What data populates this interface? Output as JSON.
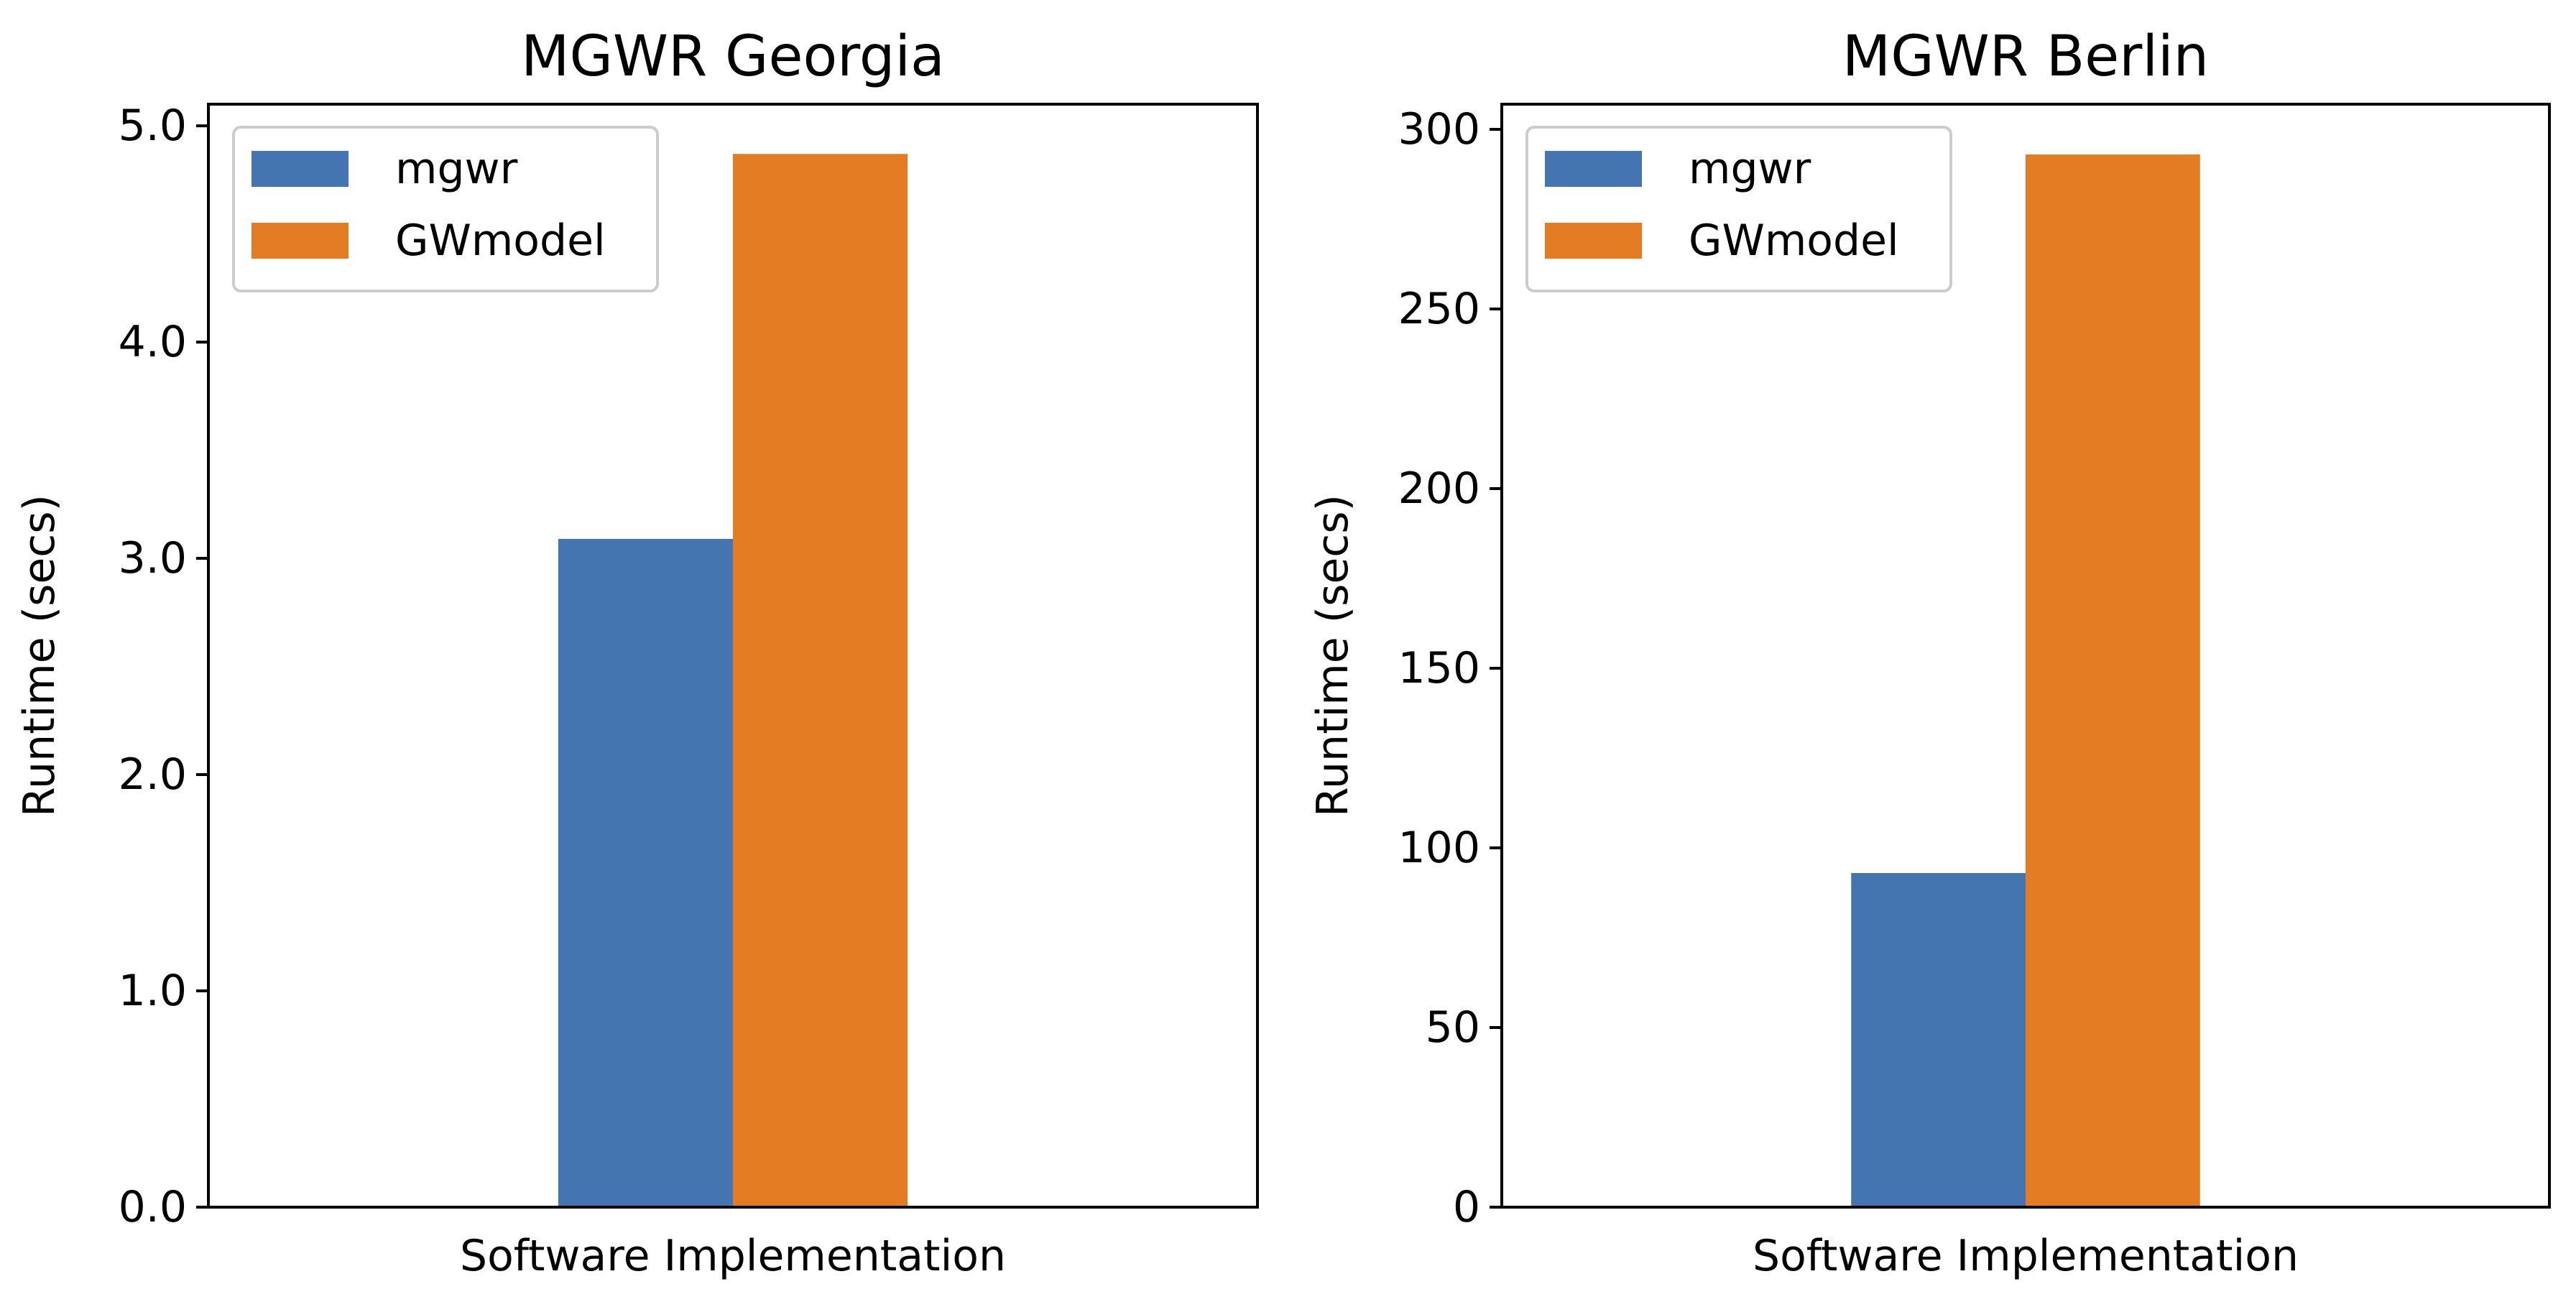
{
  "chart_data": [
    {
      "type": "bar",
      "title": "MGWR Georgia",
      "xlabel": "Software Implementation",
      "ylabel": "Runtime (secs)",
      "ylim": [
        0,
        5.1
      ],
      "yticks": [
        0,
        1,
        2,
        3,
        4,
        5
      ],
      "ytick_labels": [
        "0.0",
        "1.0",
        "2.0",
        "3.0",
        "4.0",
        "5.0"
      ],
      "categories": [
        ""
      ],
      "legend_position": "upper-left",
      "grid": false,
      "series": [
        {
          "name": "mgwr",
          "color": "#4575b0",
          "values": [
            3.09
          ]
        },
        {
          "name": "GWmodel",
          "color": "#e37c22",
          "values": [
            4.87
          ]
        }
      ]
    },
    {
      "type": "bar",
      "title": "MGWR Berlin",
      "xlabel": "Software Implementation",
      "ylabel": "Runtime (secs)",
      "ylim": [
        0,
        307
      ],
      "yticks": [
        0,
        50,
        100,
        150,
        200,
        250,
        300
      ],
      "ytick_labels": [
        "0",
        "50",
        "100",
        "150",
        "200",
        "250",
        "300"
      ],
      "categories": [
        ""
      ],
      "legend_position": "upper-left",
      "grid": false,
      "series": [
        {
          "name": "mgwr",
          "color": "#4575b0",
          "values": [
            93
          ]
        },
        {
          "name": "GWmodel",
          "color": "#e37c22",
          "values": [
            293
          ]
        }
      ]
    }
  ]
}
